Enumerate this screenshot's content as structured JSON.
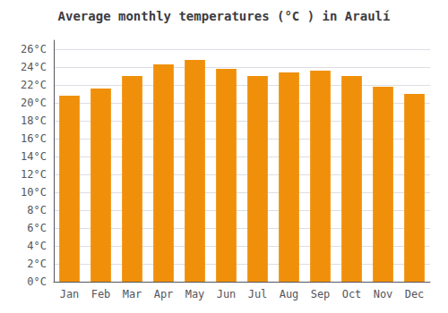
{
  "chart_data": {
    "type": "bar",
    "title": "Average monthly temperatures (°C ) in Araulí",
    "categories": [
      "Jan",
      "Feb",
      "Mar",
      "Apr",
      "May",
      "Jun",
      "Jul",
      "Aug",
      "Sep",
      "Oct",
      "Nov",
      "Dec"
    ],
    "values": [
      20.8,
      21.6,
      23.0,
      24.3,
      24.8,
      23.8,
      23.0,
      23.4,
      23.6,
      23.0,
      21.8,
      21.0
    ],
    "color": "#F0900A",
    "ylim": [
      0,
      27
    ],
    "yticks": [
      {
        "value": 0,
        "label": "0°C"
      },
      {
        "value": 2,
        "label": "2°C"
      },
      {
        "value": 4,
        "label": "4°C"
      },
      {
        "value": 6,
        "label": "6°C"
      },
      {
        "value": 8,
        "label": "8°C"
      },
      {
        "value": 10,
        "label": "10°C"
      },
      {
        "value": 12,
        "label": "12°C"
      },
      {
        "value": 14,
        "label": "14°C"
      },
      {
        "value": 16,
        "label": "16°C"
      },
      {
        "value": 18,
        "label": "18°C"
      },
      {
        "value": 20,
        "label": "20°C"
      },
      {
        "value": 22,
        "label": "22°C"
      },
      {
        "value": 24,
        "label": "24°C"
      },
      {
        "value": 26,
        "label": "26°C"
      }
    ],
    "grid": true
  }
}
